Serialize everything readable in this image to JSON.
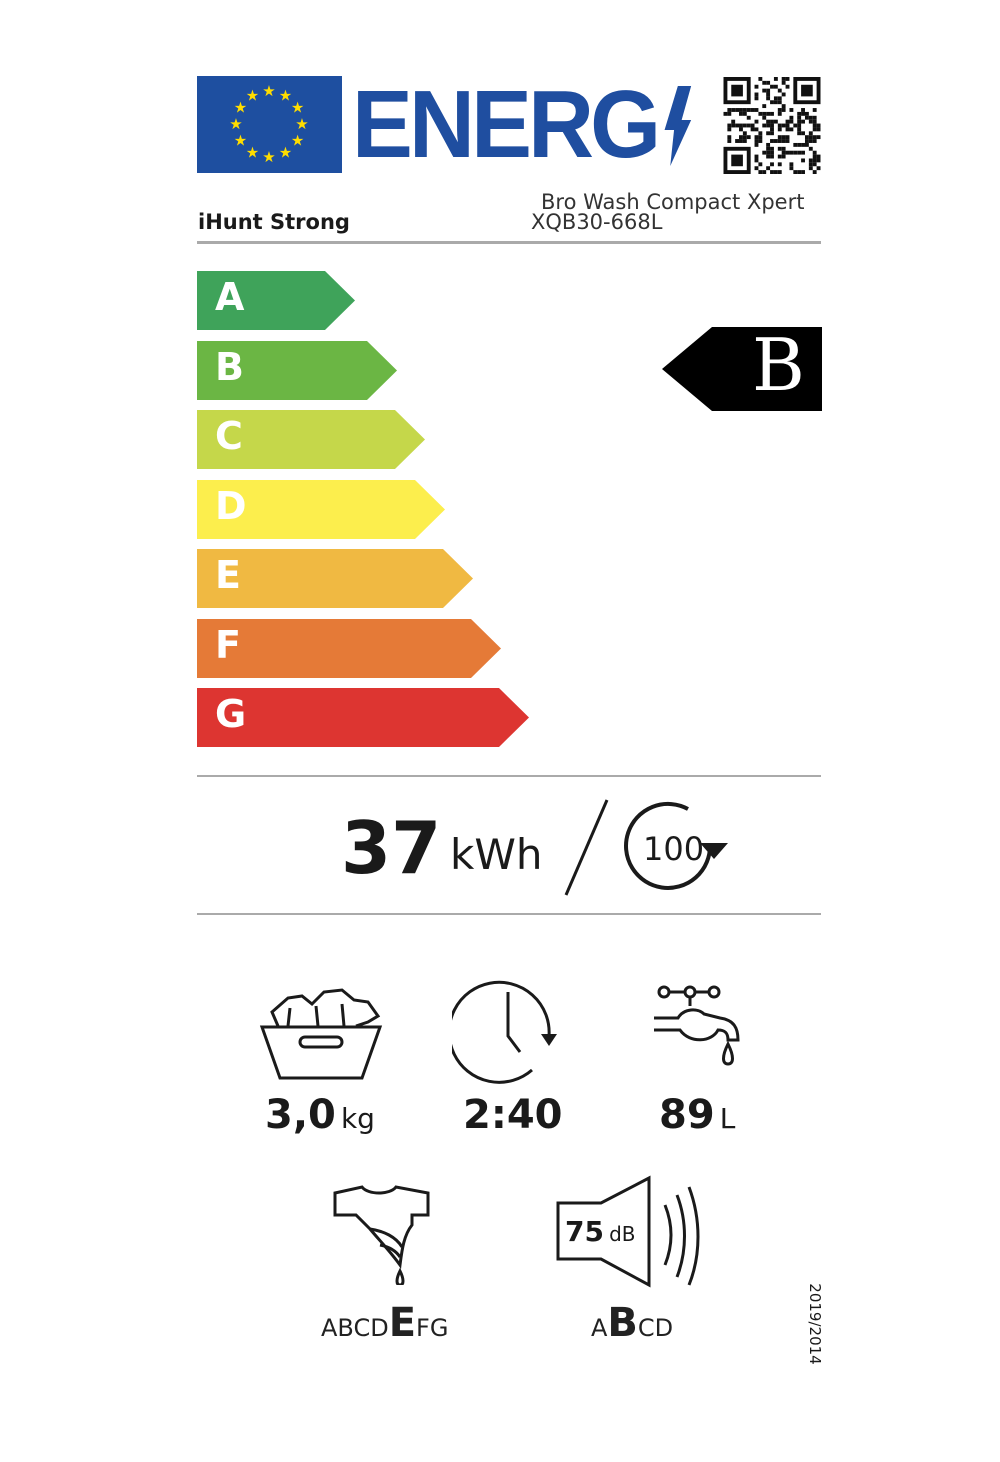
{
  "header": {
    "logo_text": "ENERG",
    "supplier": "iHunt Strong",
    "model_name": "Bro Wash Compact Xpert",
    "model_id": "XQB30-668L",
    "qr_code": "qr-code"
  },
  "scale": {
    "classes": [
      {
        "letter": "A",
        "color": "#3fa35a"
      },
      {
        "letter": "B",
        "color": "#6bb644"
      },
      {
        "letter": "C",
        "color": "#c5d74a"
      },
      {
        "letter": "D",
        "color": "#fcee4d"
      },
      {
        "letter": "E",
        "color": "#f0b942"
      },
      {
        "letter": "F",
        "color": "#e57a37"
      },
      {
        "letter": "G",
        "color": "#dd3531"
      }
    ],
    "rated_class": "B"
  },
  "energy": {
    "value": "37",
    "unit": "kWh",
    "cycles": "100"
  },
  "specs": {
    "capacity": {
      "value": "3,0",
      "unit": "kg"
    },
    "duration": {
      "value": "2:40"
    },
    "water": {
      "value": "89",
      "unit": "L"
    },
    "spin": {
      "before": "ABCD",
      "selected": "E",
      "after": "FG"
    },
    "noise": {
      "value": "75",
      "unit": "dB",
      "before": "A",
      "selected": "B",
      "after": "CD"
    }
  },
  "regulation": "2019/2014"
}
